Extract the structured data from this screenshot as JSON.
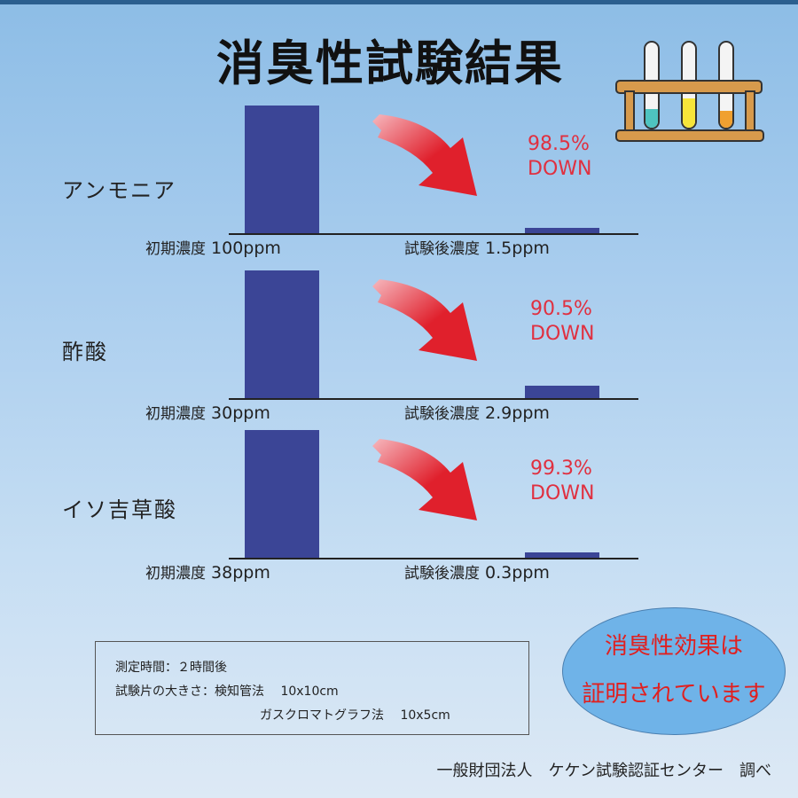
{
  "title": "消臭性試験結果",
  "chart_data": {
    "type": "bar",
    "unit": "ppm",
    "panels": [
      {
        "gas": "アンモニア",
        "initial_label": "初期濃度",
        "after_label": "試験後濃度",
        "initial_value": 100,
        "after_value": 1.5,
        "initial_text": "100ppm",
        "after_text": "1.5ppm",
        "reduction_pct": "98.5%",
        "reduction_word": "DOWN"
      },
      {
        "gas": "酢酸",
        "initial_label": "初期濃度",
        "after_label": "試験後濃度",
        "initial_value": 30,
        "after_value": 2.9,
        "initial_text": "30ppm",
        "after_text": "2.9ppm",
        "reduction_pct": "90.5%",
        "reduction_word": "DOWN"
      },
      {
        "gas": "イソ吉草酸",
        "initial_label": "初期濃度",
        "after_label": "試験後濃度",
        "initial_value": 38,
        "after_value": 0.3,
        "initial_text": "38ppm",
        "after_text": "0.3ppm",
        "reduction_pct": "99.3%",
        "reduction_word": "DOWN"
      }
    ]
  },
  "info": {
    "line1": "測定時間：２時間後",
    "line2": "試験片の大きさ：検知管法　 10x10cm",
    "line3": "ガスクロマトグラフ法　 10x5cm"
  },
  "badge": {
    "line1": "消臭性効果は",
    "line2": "証明されています"
  },
  "footer": "一般財団法人　ケケン試験認証センター　調べ",
  "colors": {
    "bar": "#3b4596",
    "arrow": "#e0202c",
    "reduction_text": "#e03040",
    "badge_fill": "#6fb3e8",
    "badge_text": "#e02020"
  },
  "icon": "test-tube-rack-icon"
}
